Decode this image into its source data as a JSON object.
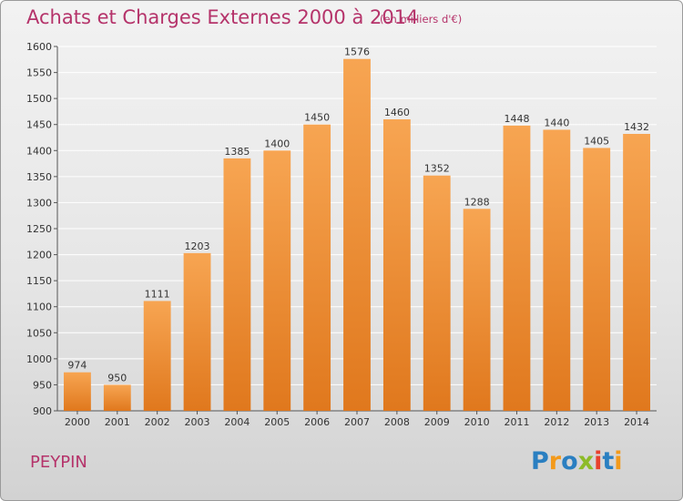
{
  "header": {
    "title": "Achats et Charges Externes 2000 à 2014",
    "subtitle": "(en milliers d'€)"
  },
  "footer": {
    "commune": "PEYPIN",
    "logo_text": "Proxiti"
  },
  "colors": {
    "title": "#b5336a",
    "bar_light": "#f7a552",
    "bar_dark": "#e0781d",
    "grid": "#ffffff"
  },
  "chart_data": {
    "type": "bar",
    "title": "Achats et Charges Externes 2000 à 2014",
    "categories": [
      "2000",
      "2001",
      "2002",
      "2003",
      "2004",
      "2005",
      "2006",
      "2007",
      "2008",
      "2009",
      "2010",
      "2011",
      "2012",
      "2013",
      "2014"
    ],
    "values": [
      974,
      950,
      1111,
      1203,
      1385,
      1400,
      1450,
      1576,
      1460,
      1352,
      1288,
      1448,
      1440,
      1405,
      1432
    ],
    "yticks": [
      900,
      950,
      1000,
      1050,
      1100,
      1150,
      1200,
      1250,
      1300,
      1350,
      1400,
      1450,
      1500,
      1550,
      1600
    ],
    "ylim": [
      900,
      1600
    ],
    "grid": true,
    "legend": "none",
    "xlabel": "",
    "ylabel": ""
  }
}
